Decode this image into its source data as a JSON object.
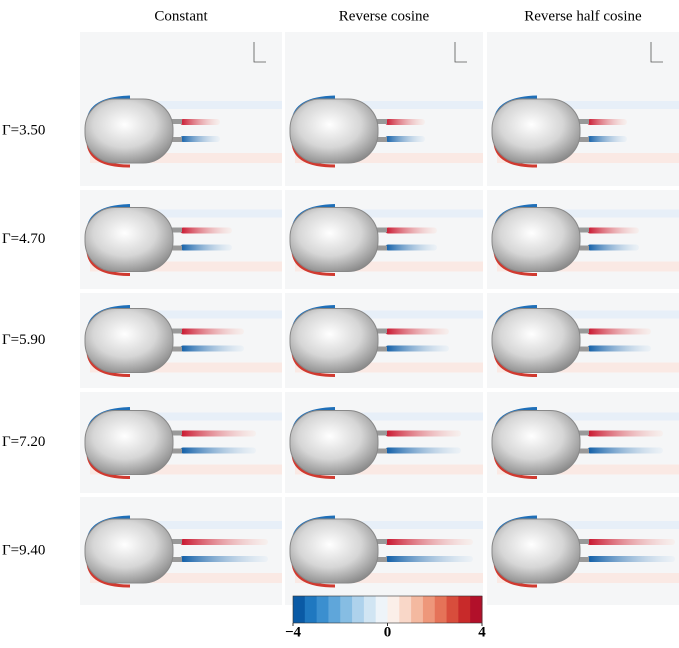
{
  "columns": [
    "Constant",
    "Reverse cosine",
    "Reverse half cosine"
  ],
  "rows": [
    "Γ=3.50",
    "Γ=4.70",
    "Γ=5.90",
    "Γ=7.20",
    "Γ=9.40"
  ],
  "colorbar": {
    "lim": [
      -4,
      4
    ],
    "ticks": [
      {
        "value": -4,
        "label": "−4"
      },
      0,
      4
    ],
    "colors": [
      "#0a5aa5",
      "#1f78c0",
      "#3b8fcf",
      "#5fa6da",
      "#86bde3",
      "#aed2ec",
      "#d1e5f3",
      "#eef4f9",
      "#fbefe9",
      "#f9d7c8",
      "#f4b9a0",
      "#ee977a",
      "#e57358",
      "#d84d3c",
      "#c82a2a",
      "#b2102a"
    ]
  }
}
